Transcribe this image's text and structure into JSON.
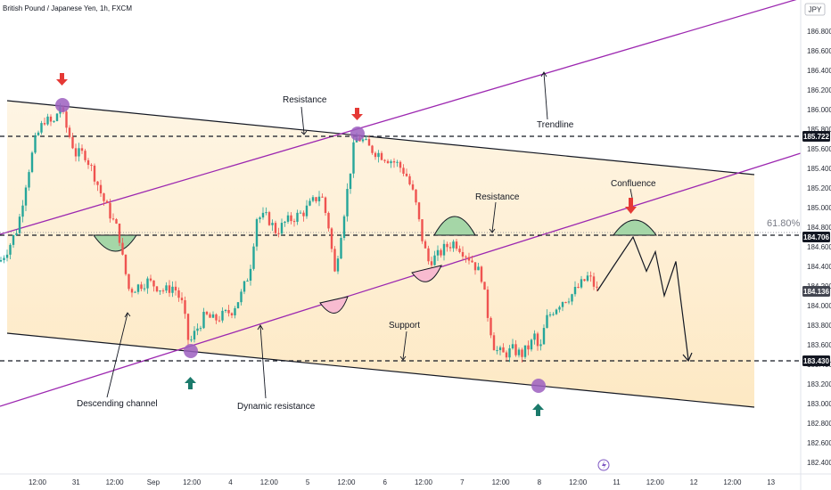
{
  "header": {
    "title": "British Pound / Japanese Yen, 1h, FXCM",
    "currency": "JPY"
  },
  "colors": {
    "up": "#26a69a",
    "down": "#ef5350",
    "channel_fill": "#fde9c4",
    "trendline": "#9c27b0",
    "marker": "#9c5fbf",
    "arrow_down": "#e53935",
    "arrow_up": "#1b7a6b",
    "green_arc": "#a5d6a7",
    "pink_arc": "#f8bbd0",
    "last_price": "#434651",
    "level_tag": "#131722"
  },
  "annotations": {
    "resistance_top": "Resistance",
    "trendline": "Trendline",
    "resistance_mid": "Resistance",
    "confluence": "Confluence",
    "fib": "61.80%",
    "support": "Support",
    "descending_channel": "Descending channel",
    "dynamic_resistance": "Dynamic resistance"
  },
  "price_tags": {
    "level_high": "185.722",
    "level_fib": "184.706",
    "last_price": "184.136",
    "level_low": "183.430"
  },
  "chart_data": {
    "type": "candlestick",
    "title": "British Pound / Japanese Yen, 1h, FXCM",
    "ylim": [
      182.3,
      187.05
    ],
    "y_ticks": [
      "182.400",
      "182.600",
      "182.800",
      "183.000",
      "183.200",
      "183.400",
      "183.600",
      "183.800",
      "184.000",
      "184.200",
      "184.400",
      "184.600",
      "184.800",
      "185.000",
      "185.200",
      "185.400",
      "185.600",
      "185.800",
      "186.000",
      "186.200",
      "186.400",
      "186.600",
      "186.800"
    ],
    "x_ticks": [
      "12:00",
      "31",
      "12:00",
      "Sep",
      "12:00",
      "4",
      "12:00",
      "5",
      "12:00",
      "6",
      "12:00",
      "7",
      "12:00",
      "8",
      "12:00",
      "11",
      "12:00",
      "12",
      "12:00",
      "13"
    ],
    "horizontal_levels": [
      185.722,
      184.706,
      183.43
    ],
    "last_price": 184.136,
    "price_path": [
      [
        0,
        184.45
      ],
      [
        10,
        184.6
      ],
      [
        20,
        184.8
      ],
      [
        30,
        185.3
      ],
      [
        40,
        185.7
      ],
      [
        50,
        185.9
      ],
      [
        60,
        185.85
      ],
      [
        67,
        186.05
      ],
      [
        75,
        185.8
      ],
      [
        85,
        185.55
      ],
      [
        95,
        185.55
      ],
      [
        105,
        185.35
      ],
      [
        115,
        185.1
      ],
      [
        125,
        184.9
      ],
      [
        133,
        184.75
      ],
      [
        138,
        184.45
      ],
      [
        145,
        184.15
      ],
      [
        155,
        184.2
      ],
      [
        165,
        184.25
      ],
      [
        175,
        184.2
      ],
      [
        185,
        184.15
      ],
      [
        195,
        184.2
      ],
      [
        205,
        184.0
      ],
      [
        212,
        183.6
      ],
      [
        220,
        183.75
      ],
      [
        230,
        183.9
      ],
      [
        240,
        183.85
      ],
      [
        250,
        183.9
      ],
      [
        260,
        183.95
      ],
      [
        270,
        184.1
      ],
      [
        280,
        184.35
      ],
      [
        288,
        184.9
      ],
      [
        300,
        184.9
      ],
      [
        310,
        184.75
      ],
      [
        320,
        184.85
      ],
      [
        330,
        184.9
      ],
      [
        340,
        184.95
      ],
      [
        350,
        185.05
      ],
      [
        360,
        185.15
      ],
      [
        370,
        184.75
      ],
      [
        375,
        184.3
      ],
      [
        380,
        184.6
      ],
      [
        390,
        185.2
      ],
      [
        398,
        185.7
      ],
      [
        405,
        185.7
      ],
      [
        415,
        185.6
      ],
      [
        425,
        185.55
      ],
      [
        435,
        185.5
      ],
      [
        445,
        185.45
      ],
      [
        455,
        185.35
      ],
      [
        465,
        185.1
      ],
      [
        473,
        184.7
      ],
      [
        480,
        184.45
      ],
      [
        490,
        184.5
      ],
      [
        500,
        184.6
      ],
      [
        510,
        184.65
      ],
      [
        520,
        184.55
      ],
      [
        530,
        184.45
      ],
      [
        540,
        184.3
      ],
      [
        548,
        183.85
      ],
      [
        555,
        183.55
      ],
      [
        565,
        183.5
      ],
      [
        575,
        183.55
      ],
      [
        585,
        183.5
      ],
      [
        595,
        183.6
      ],
      [
        600,
        183.7
      ],
      [
        605,
        183.5
      ],
      [
        612,
        183.85
      ],
      [
        620,
        183.95
      ],
      [
        630,
        184.05
      ],
      [
        640,
        184.1
      ],
      [
        650,
        184.2
      ],
      [
        660,
        184.3
      ],
      [
        670,
        184.15
      ]
    ],
    "projection": [
      [
        670,
        184.15
      ],
      [
        688,
        184.4
      ],
      [
        710,
        184.7
      ],
      [
        725,
        184.35
      ],
      [
        735,
        184.55
      ],
      [
        745,
        184.1
      ],
      [
        758,
        184.45
      ],
      [
        772,
        183.45
      ]
    ]
  }
}
